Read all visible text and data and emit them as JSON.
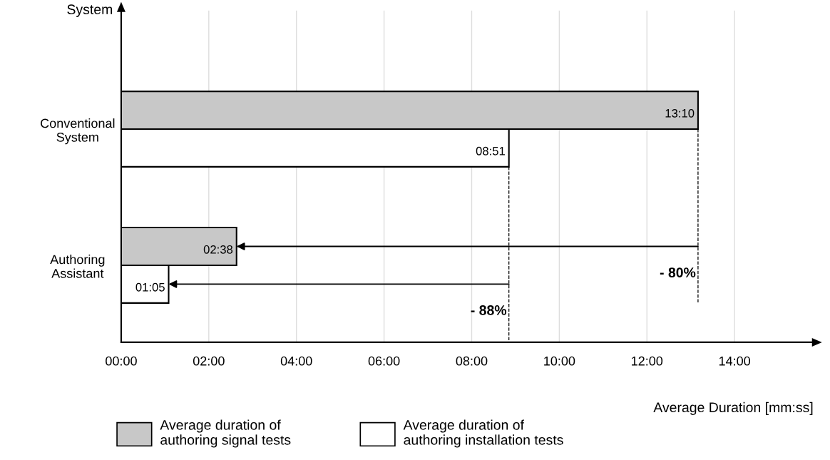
{
  "chart_data": {
    "type": "bar",
    "orientation": "horizontal",
    "xlabel": "Average Duration [mm:ss]",
    "ylabel": "System",
    "categories": [
      "Conventional\nSystem",
      "Authoring\nAssistant"
    ],
    "series": [
      {
        "name": "Average duration of\nauthoring signal tests",
        "color": "#c8c8c8",
        "values": [
          13.1667,
          2.6333
        ],
        "value_labels": [
          "13:10",
          "02:38"
        ]
      },
      {
        "name": "Average duration of\nauthoring installation tests",
        "color": "#ffffff",
        "values": [
          8.85,
          1.0833
        ],
        "value_labels": [
          "08:51",
          "01:05"
        ]
      }
    ],
    "xlim": [
      0,
      15.8
    ],
    "xticks": [
      {
        "value": 0,
        "label": "00:00"
      },
      {
        "value": 2,
        "label": "02:00"
      },
      {
        "value": 4,
        "label": "04:00"
      },
      {
        "value": 6,
        "label": "06:00"
      },
      {
        "value": 8,
        "label": "08:00"
      },
      {
        "value": 10,
        "label": "10:00"
      },
      {
        "value": 12,
        "label": "12:00"
      },
      {
        "value": 14,
        "label": "14:00"
      }
    ],
    "annotations": [
      "- 80%",
      "- 88%"
    ],
    "grid": "x",
    "legend": "bottom"
  }
}
